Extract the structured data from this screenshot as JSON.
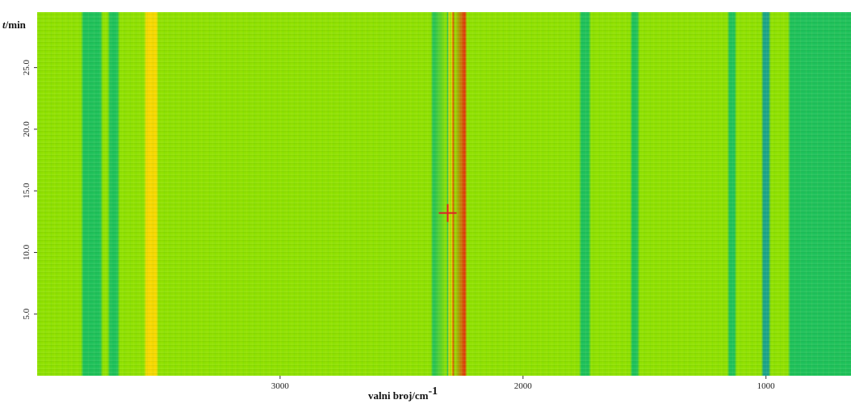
{
  "chart_data": {
    "type": "heatmap",
    "title": "",
    "xlabel": "valni broj/cm",
    "xlabel_superscript": "-1",
    "ylabel_italic": "t",
    "ylabel": "/min",
    "xlim": [
      4000,
      650
    ],
    "ylim": [
      0,
      29.5
    ],
    "x_axis_reversed": true,
    "x_ticks": [
      3000,
      2000,
      1000
    ],
    "x_tick_labels": [
      "3000",
      "2000",
      "1000"
    ],
    "y_ticks": [
      5,
      10,
      15,
      20,
      25
    ],
    "y_tick_labels": [
      "5.0",
      "10.0",
      "15.0",
      "20.0",
      "25.0"
    ],
    "colors": {
      "background": "#8fe000",
      "low": "#1fc15a",
      "very_low": "#1aa389",
      "high": "#f7d800",
      "peak": "#e8340a",
      "marker": "#e0202a"
    },
    "intensity_bands": [
      {
        "from": 4000,
        "to": 3880,
        "level": "background"
      },
      {
        "from": 3810,
        "to": 3740,
        "level": "low"
      },
      {
        "from": 3700,
        "to": 3670,
        "level": "low"
      },
      {
        "from": 3550,
        "to": 3510,
        "level": "high"
      },
      {
        "from": 2370,
        "to": 2310,
        "level": "low"
      },
      {
        "from": 2305,
        "to": 2290,
        "level": "high"
      },
      {
        "from": 2290,
        "to": 2240,
        "level": "peak"
      },
      {
        "from": 1760,
        "to": 1730,
        "level": "low"
      },
      {
        "from": 1550,
        "to": 1530,
        "level": "low"
      },
      {
        "from": 1150,
        "to": 1130,
        "level": "low"
      },
      {
        "from": 1010,
        "to": 990,
        "level": "very_low"
      },
      {
        "from": 900,
        "to": 650,
        "level": "low"
      }
    ],
    "marker": {
      "x": 2310,
      "y": 13.2,
      "shape": "crosshair"
    }
  }
}
